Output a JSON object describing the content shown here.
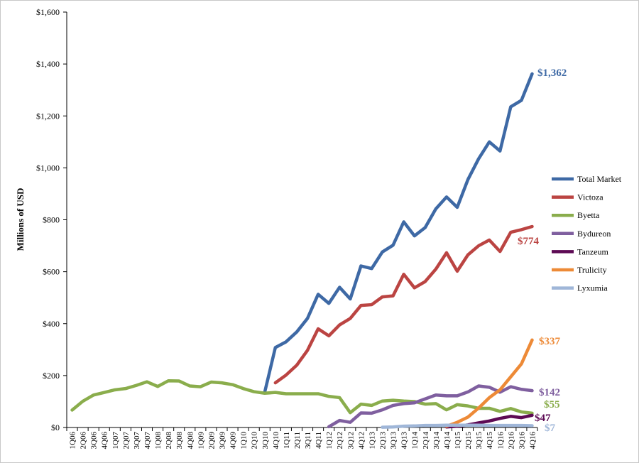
{
  "chart_data": {
    "type": "line",
    "title": "",
    "xlabel": "",
    "ylabel": "Millions of USD",
    "ylim": [
      0,
      1600
    ],
    "yticks": [
      0,
      200,
      400,
      600,
      800,
      1000,
      1200,
      1400,
      1600
    ],
    "ytick_labels": [
      "$0",
      "$200",
      "$400",
      "$600",
      "$800",
      "$1,000",
      "$1,200",
      "$1,400",
      "$1,600"
    ],
    "grid": false,
    "legend_position": "right",
    "x": [
      "1Q06",
      "2Q06",
      "3Q06",
      "4Q06",
      "1Q07",
      "2Q07",
      "3Q07",
      "4Q07",
      "1Q08",
      "2Q08",
      "3Q08",
      "4Q08",
      "1Q09",
      "2Q09",
      "3Q09",
      "4Q09",
      "1Q10",
      "2Q10",
      "3Q10",
      "4Q10",
      "1Q11",
      "2Q11",
      "3Q11",
      "4Q11",
      "1Q12",
      "2Q12",
      "3Q12",
      "4Q12",
      "1Q13",
      "2Q13",
      "3Q13",
      "4Q13",
      "1Q14",
      "2Q14",
      "3Q14",
      "4Q14",
      "1Q15",
      "2Q15",
      "3Q15",
      "4Q15",
      "1Q16",
      "2Q16",
      "3Q16",
      "4Q16"
    ],
    "series": [
      {
        "name": "Total Market",
        "color": "#3e69a5",
        "end_label": "$1,362",
        "values": [
          null,
          null,
          null,
          null,
          null,
          null,
          null,
          null,
          null,
          null,
          null,
          null,
          null,
          null,
          null,
          null,
          null,
          null,
          135,
          308,
          330,
          368,
          420,
          513,
          478,
          540,
          495,
          622,
          612,
          676,
          702,
          792,
          738,
          770,
          842,
          888,
          848,
          955,
          1035,
          1100,
          1065,
          1235,
          1260,
          1362
        ]
      },
      {
        "name": "Victoza",
        "color": "#bb4442",
        "end_label": "$774",
        "values": [
          null,
          null,
          null,
          null,
          null,
          null,
          null,
          null,
          null,
          null,
          null,
          null,
          null,
          null,
          null,
          null,
          null,
          null,
          null,
          172,
          202,
          240,
          297,
          380,
          353,
          395,
          420,
          470,
          473,
          503,
          507,
          590,
          538,
          562,
          610,
          673,
          602,
          665,
          700,
          722,
          678,
          752,
          762,
          774
        ]
      },
      {
        "name": "Byetta",
        "color": "#8aad4c",
        "end_label": "$55",
        "values": [
          67,
          101,
          125,
          135,
          145,
          150,
          162,
          176,
          158,
          180,
          179,
          160,
          157,
          175,
          172,
          165,
          150,
          138,
          132,
          135,
          130,
          130,
          130,
          130,
          120,
          115,
          57,
          90,
          85,
          102,
          105,
          102,
          100,
          90,
          92,
          68,
          88,
          83,
          74,
          74,
          62,
          73,
          60,
          55
        ]
      },
      {
        "name": "Bydureon",
        "color": "#7f5f9f",
        "end_label": "$142",
        "values": [
          null,
          null,
          null,
          null,
          null,
          null,
          null,
          null,
          null,
          null,
          null,
          null,
          null,
          null,
          null,
          null,
          null,
          null,
          null,
          null,
          null,
          null,
          null,
          null,
          3,
          27,
          20,
          56,
          55,
          68,
          85,
          92,
          95,
          110,
          125,
          122,
          122,
          137,
          160,
          155,
          136,
          157,
          147,
          142
        ]
      },
      {
        "name": "Tanzeum",
        "color": "#5d0a54",
        "end_label": "$47",
        "values": [
          null,
          null,
          null,
          null,
          null,
          null,
          null,
          null,
          null,
          null,
          null,
          null,
          null,
          null,
          null,
          null,
          null,
          null,
          null,
          null,
          null,
          null,
          null,
          null,
          null,
          null,
          null,
          null,
          null,
          null,
          null,
          null,
          null,
          null,
          null,
          2,
          5,
          10,
          18,
          25,
          35,
          43,
          38,
          47
        ]
      },
      {
        "name": "Trulicity",
        "color": "#ed8a37",
        "end_label": "$337",
        "values": [
          null,
          null,
          null,
          null,
          null,
          null,
          null,
          null,
          null,
          null,
          null,
          null,
          null,
          null,
          null,
          null,
          null,
          null,
          null,
          null,
          null,
          null,
          null,
          null,
          null,
          null,
          null,
          null,
          null,
          null,
          null,
          null,
          null,
          null,
          null,
          5,
          20,
          40,
          75,
          115,
          145,
          195,
          245,
          337
        ]
      },
      {
        "name": "Lyxumia",
        "color": "#9fb6d8",
        "end_label": "$7",
        "values": [
          null,
          null,
          null,
          null,
          null,
          null,
          null,
          null,
          null,
          null,
          null,
          null,
          null,
          null,
          null,
          null,
          null,
          null,
          null,
          null,
          null,
          null,
          null,
          null,
          null,
          null,
          null,
          null,
          null,
          1,
          2,
          5,
          6,
          8,
          8,
          9,
          9,
          9,
          9,
          8,
          8,
          8,
          8,
          7
        ]
      }
    ]
  }
}
